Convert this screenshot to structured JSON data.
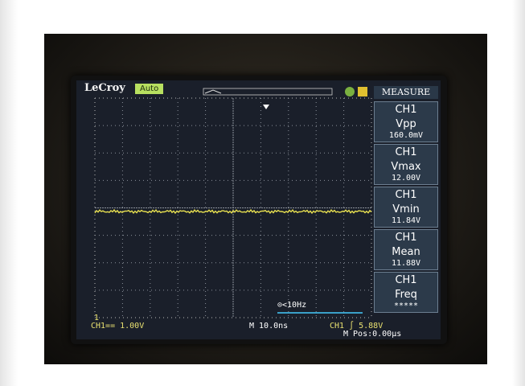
{
  "header": {
    "brand": "LeCroy",
    "mode": "Auto",
    "panel_title": "MEASURE"
  },
  "measurements": [
    {
      "channel": "CH1",
      "label": "Vpp",
      "value": "160.0mV"
    },
    {
      "channel": "CH1",
      "label": "Vmax",
      "value": "12.00V"
    },
    {
      "channel": "CH1",
      "label": "Vmin",
      "value": "11.84V"
    },
    {
      "channel": "CH1",
      "label": "Mean",
      "value": "11.88V"
    },
    {
      "channel": "CH1",
      "label": "Freq",
      "value": "*****"
    }
  ],
  "footer": {
    "marker": "1",
    "channel_scale": "CH1== 1.00V",
    "timebase": "M 10.0ns",
    "trigger": "CH1 ∫ 5.88V",
    "position": "M Pos:0.00μs",
    "frequency": "⊙<10Hz"
  }
}
